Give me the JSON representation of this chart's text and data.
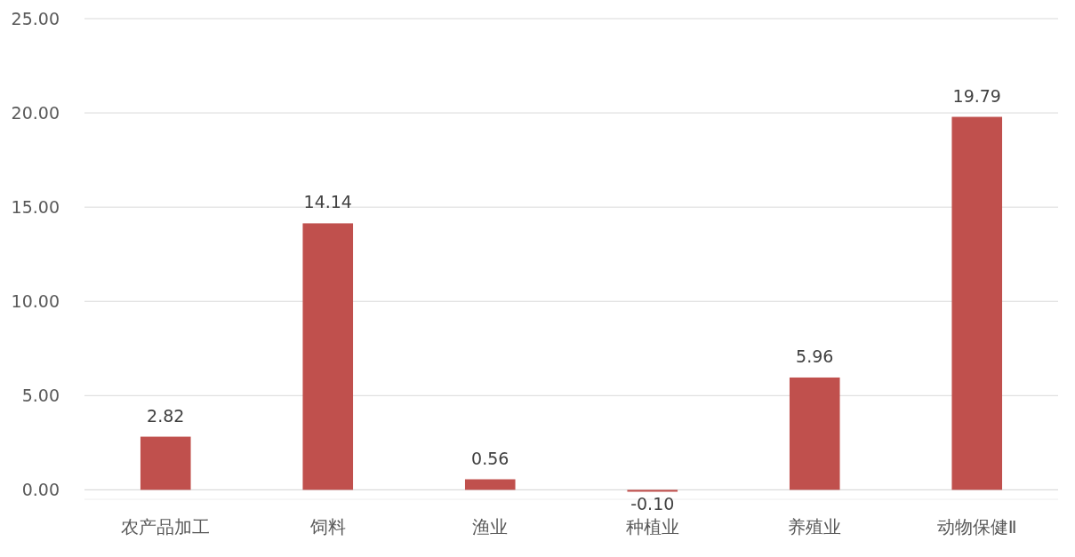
{
  "chart_data": {
    "type": "bar",
    "categories": [
      "农产品加工",
      "饲料",
      "渔业",
      "种植业",
      "养殖业",
      "动物保健Ⅱ"
    ],
    "values": [
      2.82,
      14.14,
      0.56,
      -0.1,
      5.96,
      19.79
    ],
    "value_labels": [
      "2.82",
      "14.14",
      "0.56",
      "-0.10",
      "5.96",
      "19.79"
    ],
    "color": "#c0504d",
    "ylim": [
      -0.5,
      25
    ],
    "yticks": [
      {
        "value": 0,
        "label": "0.00"
      },
      {
        "value": 5,
        "label": "5.00"
      },
      {
        "value": 10,
        "label": "10.00"
      },
      {
        "value": 15,
        "label": "15.00"
      },
      {
        "value": 20,
        "label": "20.00"
      },
      {
        "value": 25,
        "label": "25.00"
      }
    ],
    "grid": "y"
  }
}
